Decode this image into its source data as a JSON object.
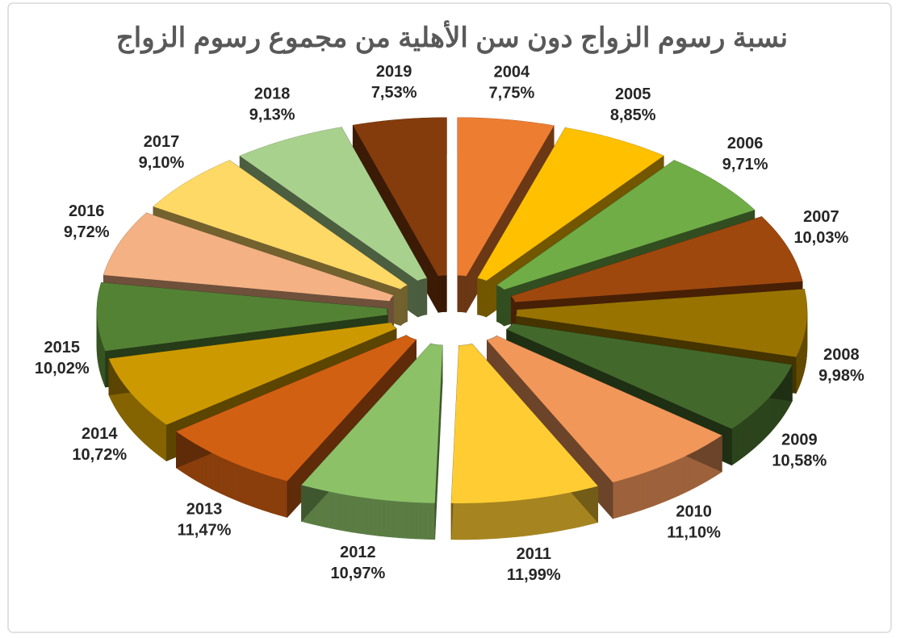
{
  "chart_data": {
    "type": "pie",
    "title": "نسبة رسوم الزواج دون سن الأهلية من مجموع رسوم الزواج",
    "categories": [
      "2004",
      "2005",
      "2006",
      "2007",
      "2008",
      "2009",
      "2010",
      "2011",
      "2012",
      "2013",
      "2014",
      "2015",
      "2016",
      "2017",
      "2018",
      "2019"
    ],
    "values": [
      7.75,
      8.85,
      9.71,
      10.03,
      9.98,
      10.58,
      11.1,
      11.99,
      10.97,
      11.47,
      10.72,
      10.02,
      9.72,
      9.1,
      9.13,
      7.53
    ],
    "value_labels": [
      "7,75%",
      "8,85%",
      "9,71%",
      "10,03%",
      "9,98%",
      "10,58%",
      "11,10%",
      "11,99%",
      "10,97%",
      "11,47%",
      "10,72%",
      "10,02%",
      "9,72%",
      "9,10%",
      "9,13%",
      "7,53%"
    ],
    "colors": [
      "#ED7D31",
      "#FFC000",
      "#70AD47",
      "#9E480E",
      "#997300",
      "#43682B",
      "#F1975A",
      "#FFCD33",
      "#8CC168",
      "#D26012",
      "#CC9A00",
      "#548235",
      "#F4B183",
      "#FFD966",
      "#A9D18E",
      "#843C0C"
    ]
  }
}
